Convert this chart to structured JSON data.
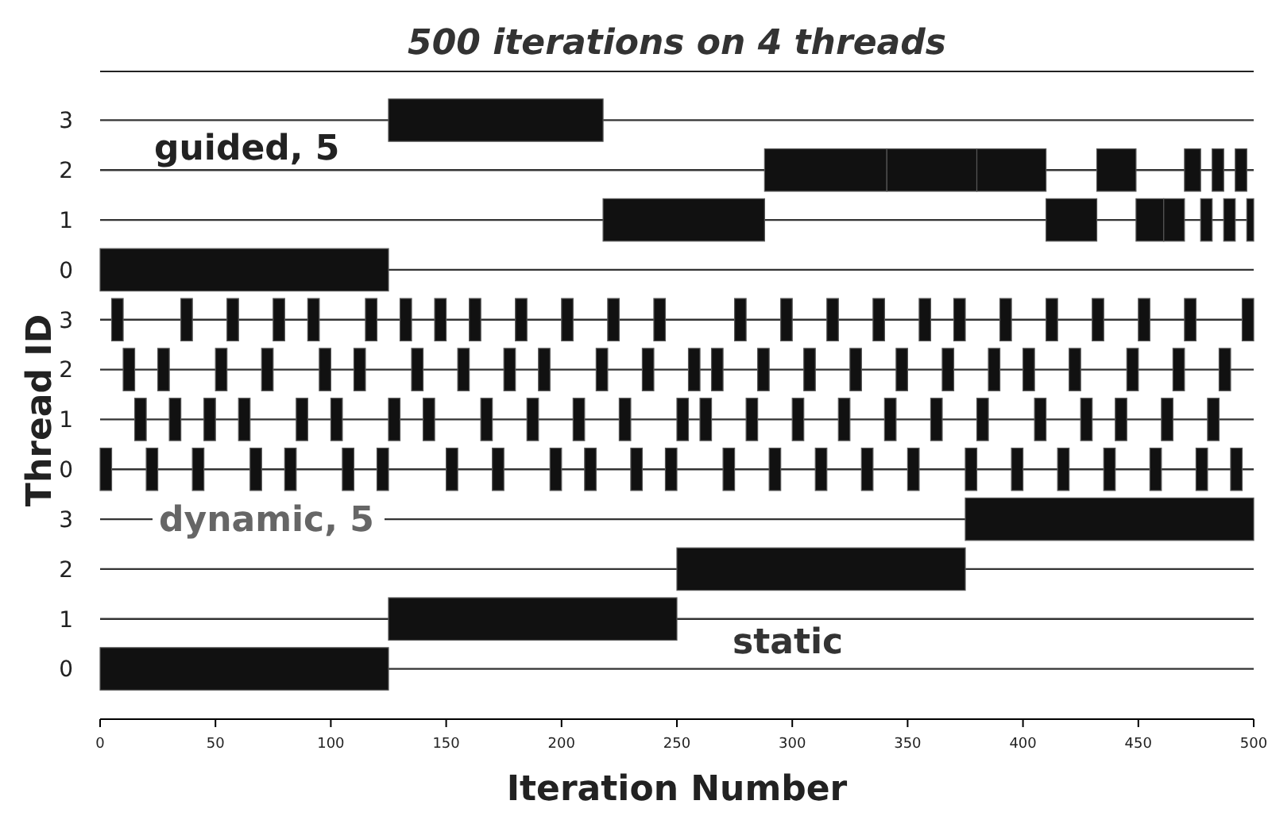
{
  "chart_data": {
    "type": "bar",
    "orientation": "horizontal",
    "title": "500 iterations on 4 threads",
    "xlabel": "Iteration Number",
    "ylabel": "Thread ID",
    "categories": [
      "3",
      "2",
      "1",
      "0",
      "3",
      "2",
      "1",
      "0",
      "3",
      "2",
      "1",
      "0"
    ],
    "xlim": [
      0,
      500
    ],
    "xticks": [
      0,
      50,
      100,
      150,
      200,
      250,
      300,
      350,
      400,
      450,
      500
    ],
    "grid": "y",
    "annotations": [
      "guided, 5",
      "dynamic, 5",
      "static"
    ],
    "series": [
      {
        "color": "#111111",
        "values": [
          93,
          53,
          70,
          125,
          5,
          5,
          5,
          5,
          125,
          125,
          125,
          125
        ],
        "base": [
          125,
          288,
          218,
          0,
          5,
          10,
          15,
          0,
          375,
          250,
          125,
          0
        ]
      },
      {
        "color": "#111111",
        "values": [
          null,
          39,
          22,
          null,
          5,
          5,
          5,
          5,
          null,
          null,
          null,
          null
        ],
        "base": [
          null,
          341,
          410,
          null,
          35,
          25,
          30,
          20,
          null,
          null,
          null,
          null
        ]
      },
      {
        "color": "#111111",
        "values": [
          null,
          30,
          12,
          null,
          5,
          5,
          5,
          5,
          null,
          null,
          null,
          null
        ],
        "base": [
          null,
          380,
          449,
          null,
          55,
          50,
          45,
          40,
          null,
          null,
          null,
          null
        ]
      },
      {
        "color": "#111111",
        "values": [
          null,
          17,
          9,
          null,
          5,
          5,
          5,
          5,
          null,
          null,
          null,
          null
        ],
        "base": [
          null,
          432,
          461,
          null,
          75,
          70,
          60,
          65,
          null,
          null,
          null,
          null
        ]
      },
      {
        "color": "#111111",
        "values": [
          null,
          7,
          5,
          null,
          5,
          5,
          5,
          5,
          null,
          null,
          null,
          null
        ],
        "base": [
          null,
          470,
          477,
          null,
          90,
          95,
          85,
          80,
          null,
          null,
          null,
          null
        ]
      },
      {
        "color": "#111111",
        "values": [
          null,
          5,
          5,
          null,
          5,
          5,
          5,
          5,
          null,
          null,
          null,
          null
        ],
        "base": [
          null,
          482,
          487,
          null,
          115,
          110,
          100,
          105,
          null,
          null,
          null,
          null
        ]
      },
      {
        "color": "#111111",
        "values": [
          null,
          5,
          3,
          null,
          5,
          5,
          5,
          5,
          null,
          null,
          null,
          null
        ],
        "base": [
          null,
          492,
          497,
          null,
          130,
          135,
          125,
          120,
          null,
          null,
          null,
          null
        ]
      },
      {
        "color": "#111111",
        "values": [
          null,
          null,
          null,
          null,
          5,
          5,
          5,
          5,
          null,
          null,
          null,
          null
        ],
        "base": [
          null,
          null,
          null,
          null,
          145,
          155,
          140,
          150,
          null,
          null,
          null,
          null
        ]
      },
      {
        "color": "#111111",
        "values": [
          null,
          null,
          null,
          null,
          5,
          5,
          5,
          5,
          null,
          null,
          null,
          null
        ],
        "base": [
          null,
          null,
          null,
          null,
          160,
          175,
          165,
          170,
          null,
          null,
          null,
          null
        ]
      },
      {
        "color": "#111111",
        "values": [
          null,
          null,
          null,
          null,
          5,
          5,
          5,
          5,
          null,
          null,
          null,
          null
        ],
        "base": [
          null,
          null,
          null,
          null,
          180,
          190,
          185,
          195,
          null,
          null,
          null,
          null
        ]
      },
      {
        "color": "#111111",
        "values": [
          null,
          null,
          null,
          null,
          5,
          5,
          5,
          5,
          null,
          null,
          null,
          null
        ],
        "base": [
          null,
          null,
          null,
          null,
          200,
          215,
          205,
          210,
          null,
          null,
          null,
          null
        ]
      },
      {
        "color": "#111111",
        "values": [
          null,
          null,
          null,
          null,
          5,
          5,
          5,
          5,
          null,
          null,
          null,
          null
        ],
        "base": [
          null,
          null,
          null,
          null,
          220,
          235,
          225,
          230,
          null,
          null,
          null,
          null
        ]
      },
      {
        "color": "#111111",
        "values": [
          null,
          null,
          null,
          null,
          5,
          5,
          5,
          5,
          null,
          null,
          null,
          null
        ],
        "base": [
          null,
          null,
          null,
          null,
          240,
          255,
          250,
          245,
          null,
          null,
          null,
          null
        ]
      },
      {
        "color": "#111111",
        "values": [
          null,
          null,
          null,
          null,
          5,
          5,
          5,
          5,
          null,
          null,
          null,
          null
        ],
        "base": [
          null,
          null,
          null,
          null,
          275,
          265,
          260,
          270,
          null,
          null,
          null,
          null
        ]
      },
      {
        "color": "#111111",
        "values": [
          null,
          null,
          null,
          null,
          5,
          5,
          5,
          5,
          null,
          null,
          null,
          null
        ],
        "base": [
          null,
          null,
          null,
          null,
          295,
          285,
          280,
          290,
          null,
          null,
          null,
          null
        ]
      },
      {
        "color": "#111111",
        "values": [
          null,
          null,
          null,
          null,
          5,
          5,
          5,
          5,
          null,
          null,
          null,
          null
        ],
        "base": [
          null,
          null,
          null,
          null,
          315,
          305,
          300,
          310,
          null,
          null,
          null,
          null
        ]
      },
      {
        "color": "#111111",
        "values": [
          null,
          null,
          null,
          null,
          5,
          5,
          5,
          5,
          null,
          null,
          null,
          null
        ],
        "base": [
          null,
          null,
          null,
          null,
          335,
          325,
          320,
          330,
          null,
          null,
          null,
          null
        ]
      },
      {
        "color": "#111111",
        "values": [
          null,
          null,
          null,
          null,
          5,
          5,
          5,
          5,
          null,
          null,
          null,
          null
        ],
        "base": [
          null,
          null,
          null,
          null,
          355,
          345,
          340,
          350,
          null,
          null,
          null,
          null
        ]
      },
      {
        "color": "#111111",
        "values": [
          null,
          null,
          null,
          null,
          5,
          5,
          5,
          5,
          null,
          null,
          null,
          null
        ],
        "base": [
          null,
          null,
          null,
          null,
          370,
          365,
          360,
          375,
          null,
          null,
          null,
          null
        ]
      },
      {
        "color": "#111111",
        "values": [
          null,
          null,
          null,
          null,
          5,
          5,
          5,
          5,
          null,
          null,
          null,
          null
        ],
        "base": [
          null,
          null,
          null,
          null,
          390,
          385,
          380,
          395,
          null,
          null,
          null,
          null
        ]
      },
      {
        "color": "#111111",
        "values": [
          null,
          null,
          null,
          null,
          5,
          5,
          5,
          5,
          null,
          null,
          null,
          null
        ],
        "base": [
          null,
          null,
          null,
          null,
          410,
          400,
          405,
          415,
          null,
          null,
          null,
          null
        ]
      },
      {
        "color": "#111111",
        "values": [
          null,
          null,
          null,
          null,
          5,
          5,
          5,
          5,
          null,
          null,
          null,
          null
        ],
        "base": [
          null,
          null,
          null,
          null,
          430,
          420,
          425,
          435,
          null,
          null,
          null,
          null
        ]
      },
      {
        "color": "#111111",
        "values": [
          null,
          null,
          null,
          null,
          5,
          5,
          5,
          5,
          null,
          null,
          null,
          null
        ],
        "base": [
          null,
          null,
          null,
          null,
          450,
          445,
          440,
          455,
          null,
          null,
          null,
          null
        ]
      },
      {
        "color": "#111111",
        "values": [
          null,
          null,
          null,
          null,
          5,
          5,
          5,
          5,
          null,
          null,
          null,
          null
        ],
        "base": [
          null,
          null,
          null,
          null,
          470,
          465,
          460,
          475,
          null,
          null,
          null,
          null
        ]
      },
      {
        "color": "#111111",
        "values": [
          null,
          null,
          null,
          null,
          5,
          5,
          5,
          5,
          null,
          null,
          null,
          null
        ],
        "base": [
          null,
          null,
          null,
          null,
          495,
          485,
          480,
          490,
          null,
          null,
          null,
          null
        ]
      }
    ]
  }
}
